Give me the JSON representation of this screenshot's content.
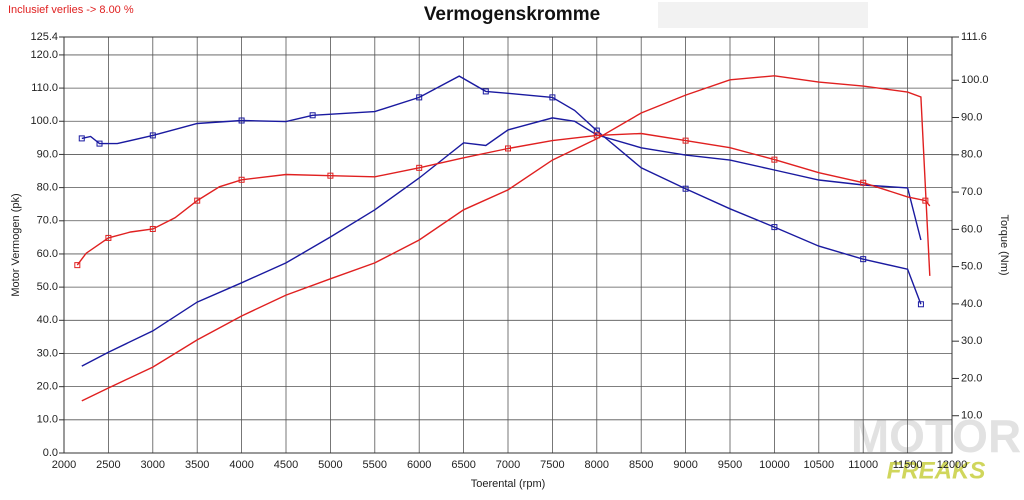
{
  "chart_data": {
    "type": "line",
    "title": "Vermogenskromme",
    "annotation": "Inclusief verlies -> 8.00 %",
    "xlabel": "Toerental (rpm)",
    "ylabel": "Motor Vermogen (pk)",
    "y2label": "Torque (Nm)",
    "watermark": {
      "top": "MOTOR",
      "bottom": "FREAKS"
    },
    "grid": true,
    "xlim": [
      2000,
      12000
    ],
    "xticks": [
      2000,
      2500,
      3000,
      3500,
      4000,
      4500,
      5000,
      5500,
      6000,
      6500,
      7000,
      7500,
      8000,
      8500,
      9000,
      9500,
      10000,
      10500,
      11000,
      11500,
      12000
    ],
    "ylim": [
      0,
      125.4
    ],
    "yticks": [
      {
        "value": 0,
        "label": "0.0"
      },
      {
        "value": 10,
        "label": "10.0"
      },
      {
        "value": 20,
        "label": "20.0"
      },
      {
        "value": 30,
        "label": "30.0"
      },
      {
        "value": 40,
        "label": "40.0"
      },
      {
        "value": 50,
        "label": "50.0"
      },
      {
        "value": 60,
        "label": "60.0"
      },
      {
        "value": 70,
        "label": "70.0"
      },
      {
        "value": 80,
        "label": "80.0"
      },
      {
        "value": 90,
        "label": "90.0"
      },
      {
        "value": 100,
        "label": "100.0"
      },
      {
        "value": 110,
        "label": "110.0"
      },
      {
        "value": 120,
        "label": "120.0"
      },
      125.4
    ],
    "y2lim": [
      0,
      111.6
    ],
    "y2ticks": [
      {
        "value": 10,
        "label": "10.0"
      },
      {
        "value": 20,
        "label": "20.0"
      },
      {
        "value": 30,
        "label": "30.0"
      },
      {
        "value": 40,
        "label": "40.0"
      },
      {
        "value": 50,
        "label": "50.0"
      },
      {
        "value": 60,
        "label": "60.0"
      },
      {
        "value": 70,
        "label": "70.0"
      },
      {
        "value": 80,
        "label": "80.0"
      },
      {
        "value": 90,
        "label": "90.0"
      },
      {
        "value": 100,
        "label": "100.0"
      },
      111.6
    ],
    "series": [
      {
        "color": "#1a1aa0",
        "axis": "y",
        "marker": "none",
        "x": [
          2200,
          2500,
          3000,
          3500,
          4000,
          4500,
          5000,
          5500,
          6000,
          6500,
          6750,
          7000,
          7500,
          7750,
          8000,
          8500,
          9000,
          9500,
          10000,
          10500,
          11000,
          11500,
          11650
        ],
        "values": [
          26.2,
          30.4,
          36.8,
          45.5,
          51.3,
          57.3,
          65.1,
          73.3,
          82.9,
          93.5,
          92.7,
          97.4,
          101.0,
          100.0,
          95.9,
          92.0,
          89.8,
          88.3,
          85.3,
          82.3,
          80.8,
          79.9,
          64.2
        ]
      },
      {
        "color": "#1a1aa0",
        "axis": "y2",
        "marker": "square",
        "x": [
          2200,
          2300,
          2400,
          2600,
          3000,
          3500,
          4000,
          4500,
          4800,
          5500,
          6000,
          6450,
          6750,
          7000,
          7500,
          7750,
          8000,
          8500,
          9000,
          9500,
          10000,
          10500,
          11000,
          11500,
          11650
        ],
        "values": [
          84.4,
          84.9,
          83.0,
          83.0,
          85.2,
          88.4,
          89.2,
          88.9,
          90.6,
          91.6,
          95.4,
          101.1,
          97.0,
          96.5,
          95.4,
          91.9,
          86.5,
          76.5,
          70.9,
          65.5,
          60.6,
          55.5,
          52.0,
          49.3,
          39.9
        ]
      },
      {
        "color": "#e02020",
        "axis": "y",
        "marker": "none",
        "x": [
          2200,
          2500,
          3000,
          3500,
          4000,
          4500,
          5000,
          5500,
          6000,
          6500,
          7000,
          7500,
          8000,
          8500,
          9000,
          9500,
          10000,
          10500,
          11000,
          11500,
          11650,
          11750
        ],
        "values": [
          15.7,
          19.6,
          25.9,
          34.1,
          41.3,
          47.6,
          52.5,
          57.3,
          64.2,
          73.3,
          79.3,
          88.3,
          94.7,
          102.5,
          107.9,
          112.5,
          113.7,
          111.8,
          110.6,
          108.8,
          107.3,
          53.4
        ]
      },
      {
        "color": "#e02020",
        "axis": "y2",
        "marker": "square",
        "x": [
          2150,
          2250,
          2500,
          2750,
          3000,
          3250,
          3500,
          3750,
          4000,
          4500,
          5000,
          5500,
          6000,
          6500,
          7000,
          7500,
          8000,
          8500,
          9000,
          9500,
          10000,
          10500,
          11000,
          11500,
          11700,
          11750
        ],
        "values": [
          50.4,
          53.6,
          57.7,
          59.3,
          60.1,
          63.1,
          67.7,
          71.4,
          73.3,
          74.7,
          74.4,
          74.1,
          76.5,
          79.2,
          81.7,
          83.8,
          85.2,
          85.7,
          83.8,
          81.9,
          78.7,
          75.2,
          72.5,
          68.7,
          67.7,
          66.3
        ]
      }
    ]
  }
}
